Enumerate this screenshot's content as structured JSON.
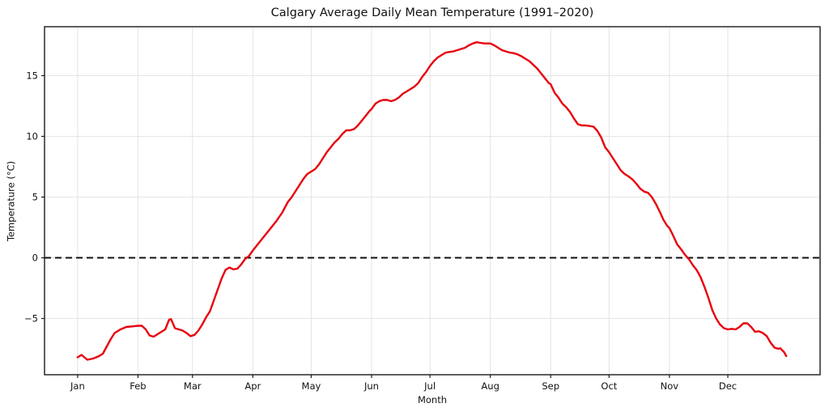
{
  "chart_data": {
    "type": "line",
    "title": "Calgary Average Daily Mean Temperature (1991–2020)",
    "xlabel": "Month",
    "ylabel": "Temperature (°C)",
    "x_unit": "day_of_year",
    "xlim": [
      -16,
      382.4
    ],
    "ylim": [
      -9.63,
      19.03
    ],
    "grid": true,
    "legend": "none",
    "background": "#ffffff",
    "axis_color": "#1a1a1a",
    "grid_color": "#e4e4e4",
    "zero_line": {
      "value": 0,
      "style": "dashed",
      "color": "#111111",
      "width": 2
    },
    "x_ticks": [
      {
        "day": 1,
        "label": "Jan"
      },
      {
        "day": 32,
        "label": "Feb"
      },
      {
        "day": 60,
        "label": "Mar"
      },
      {
        "day": 91,
        "label": "Apr"
      },
      {
        "day": 121,
        "label": "May"
      },
      {
        "day": 152,
        "label": "Jun"
      },
      {
        "day": 182,
        "label": "Jul"
      },
      {
        "day": 213,
        "label": "Aug"
      },
      {
        "day": 244,
        "label": "Sep"
      },
      {
        "day": 274,
        "label": "Oct"
      },
      {
        "day": 305,
        "label": "Nov"
      },
      {
        "day": 335,
        "label": "Dec"
      }
    ],
    "y_ticks": [
      {
        "value": -5,
        "label": "−5"
      },
      {
        "value": 0,
        "label": "0"
      },
      {
        "value": 5,
        "label": "5"
      },
      {
        "value": 10,
        "label": "10"
      },
      {
        "value": 15,
        "label": "15"
      }
    ],
    "series": [
      {
        "name": "daily-mean-temperature",
        "color": "#e8000b",
        "line_width": 2.4,
        "points": [
          [
            1,
            -8.2
          ],
          [
            3,
            -8.0
          ],
          [
            6,
            -8.4
          ],
          [
            9,
            -8.3
          ],
          [
            12,
            -8.1
          ],
          [
            14,
            -7.9
          ],
          [
            16,
            -7.3
          ],
          [
            18,
            -6.7
          ],
          [
            20,
            -6.2
          ],
          [
            23,
            -5.9
          ],
          [
            26,
            -5.7
          ],
          [
            29,
            -5.65
          ],
          [
            32,
            -5.6
          ],
          [
            34,
            -5.6
          ],
          [
            36,
            -5.9
          ],
          [
            38,
            -6.4
          ],
          [
            40,
            -6.5
          ],
          [
            42,
            -6.3
          ],
          [
            44,
            -6.1
          ],
          [
            46,
            -5.9
          ],
          [
            48,
            -5.1
          ],
          [
            49,
            -5.05
          ],
          [
            51,
            -5.8
          ],
          [
            53,
            -5.9
          ],
          [
            55,
            -6.0
          ],
          [
            57,
            -6.2
          ],
          [
            59,
            -6.45
          ],
          [
            61,
            -6.35
          ],
          [
            63,
            -6.0
          ],
          [
            65,
            -5.5
          ],
          [
            67,
            -4.9
          ],
          [
            69,
            -4.4
          ],
          [
            71,
            -3.5
          ],
          [
            73,
            -2.6
          ],
          [
            75,
            -1.7
          ],
          [
            77,
            -1.0
          ],
          [
            79,
            -0.8
          ],
          [
            81,
            -0.95
          ],
          [
            83,
            -0.9
          ],
          [
            85,
            -0.55
          ],
          [
            87,
            -0.1
          ],
          [
            89,
            0.15
          ],
          [
            91,
            0.6
          ],
          [
            94,
            1.2
          ],
          [
            97,
            1.8
          ],
          [
            100,
            2.4
          ],
          [
            103,
            3.0
          ],
          [
            106,
            3.7
          ],
          [
            109,
            4.6
          ],
          [
            111,
            5.0
          ],
          [
            113,
            5.5
          ],
          [
            115,
            6.0
          ],
          [
            117,
            6.5
          ],
          [
            119,
            6.9
          ],
          [
            121,
            7.1
          ],
          [
            123,
            7.3
          ],
          [
            125,
            7.7
          ],
          [
            127,
            8.2
          ],
          [
            129,
            8.7
          ],
          [
            131,
            9.1
          ],
          [
            133,
            9.5
          ],
          [
            135,
            9.8
          ],
          [
            137,
            10.2
          ],
          [
            139,
            10.5
          ],
          [
            141,
            10.5
          ],
          [
            143,
            10.6
          ],
          [
            145,
            10.9
          ],
          [
            147,
            11.3
          ],
          [
            149,
            11.7
          ],
          [
            151,
            12.1
          ],
          [
            152,
            12.25
          ],
          [
            154,
            12.7
          ],
          [
            156,
            12.9
          ],
          [
            158,
            13.0
          ],
          [
            160,
            13.0
          ],
          [
            162,
            12.9
          ],
          [
            164,
            13.0
          ],
          [
            166,
            13.2
          ],
          [
            168,
            13.5
          ],
          [
            170,
            13.7
          ],
          [
            172,
            13.9
          ],
          [
            174,
            14.1
          ],
          [
            176,
            14.4
          ],
          [
            178,
            14.9
          ],
          [
            180,
            15.3
          ],
          [
            182,
            15.8
          ],
          [
            184,
            16.2
          ],
          [
            186,
            16.5
          ],
          [
            188,
            16.7
          ],
          [
            190,
            16.9
          ],
          [
            192,
            16.95
          ],
          [
            194,
            17.0
          ],
          [
            196,
            17.1
          ],
          [
            198,
            17.2
          ],
          [
            200,
            17.3
          ],
          [
            202,
            17.5
          ],
          [
            204,
            17.65
          ],
          [
            206,
            17.75
          ],
          [
            208,
            17.7
          ],
          [
            210,
            17.65
          ],
          [
            213,
            17.65
          ],
          [
            215,
            17.5
          ],
          [
            217,
            17.3
          ],
          [
            219,
            17.1
          ],
          [
            221,
            17.0
          ],
          [
            223,
            16.9
          ],
          [
            225,
            16.85
          ],
          [
            227,
            16.75
          ],
          [
            229,
            16.6
          ],
          [
            231,
            16.4
          ],
          [
            233,
            16.2
          ],
          [
            235,
            15.9
          ],
          [
            237,
            15.6
          ],
          [
            239,
            15.2
          ],
          [
            241,
            14.8
          ],
          [
            243,
            14.4
          ],
          [
            244,
            14.3
          ],
          [
            246,
            13.6
          ],
          [
            248,
            13.2
          ],
          [
            250,
            12.7
          ],
          [
            252,
            12.4
          ],
          [
            254,
            12.0
          ],
          [
            256,
            11.45
          ],
          [
            258,
            11.0
          ],
          [
            260,
            10.9
          ],
          [
            262,
            10.9
          ],
          [
            264,
            10.85
          ],
          [
            266,
            10.8
          ],
          [
            268,
            10.45
          ],
          [
            270,
            9.9
          ],
          [
            272,
            9.1
          ],
          [
            274,
            8.7
          ],
          [
            276,
            8.2
          ],
          [
            278,
            7.7
          ],
          [
            280,
            7.2
          ],
          [
            282,
            6.9
          ],
          [
            284,
            6.7
          ],
          [
            286,
            6.45
          ],
          [
            288,
            6.1
          ],
          [
            290,
            5.7
          ],
          [
            292,
            5.45
          ],
          [
            294,
            5.35
          ],
          [
            296,
            5.0
          ],
          [
            298,
            4.45
          ],
          [
            300,
            3.8
          ],
          [
            302,
            3.1
          ],
          [
            304,
            2.6
          ],
          [
            305,
            2.45
          ],
          [
            307,
            1.8
          ],
          [
            309,
            1.1
          ],
          [
            311,
            0.7
          ],
          [
            313,
            0.25
          ],
          [
            315,
            -0.1
          ],
          [
            317,
            -0.6
          ],
          [
            319,
            -1.0
          ],
          [
            321,
            -1.6
          ],
          [
            323,
            -2.4
          ],
          [
            325,
            -3.3
          ],
          [
            327,
            -4.3
          ],
          [
            329,
            -5.0
          ],
          [
            331,
            -5.5
          ],
          [
            333,
            -5.8
          ],
          [
            335,
            -5.9
          ],
          [
            337,
            -5.85
          ],
          [
            339,
            -5.9
          ],
          [
            341,
            -5.7
          ],
          [
            343,
            -5.4
          ],
          [
            345,
            -5.4
          ],
          [
            347,
            -5.7
          ],
          [
            349,
            -6.1
          ],
          [
            351,
            -6.05
          ],
          [
            353,
            -6.2
          ],
          [
            355,
            -6.45
          ],
          [
            357,
            -7.0
          ],
          [
            359,
            -7.4
          ],
          [
            361,
            -7.5
          ],
          [
            362,
            -7.45
          ],
          [
            364,
            -7.8
          ],
          [
            365,
            -8.1
          ]
        ]
      }
    ]
  }
}
